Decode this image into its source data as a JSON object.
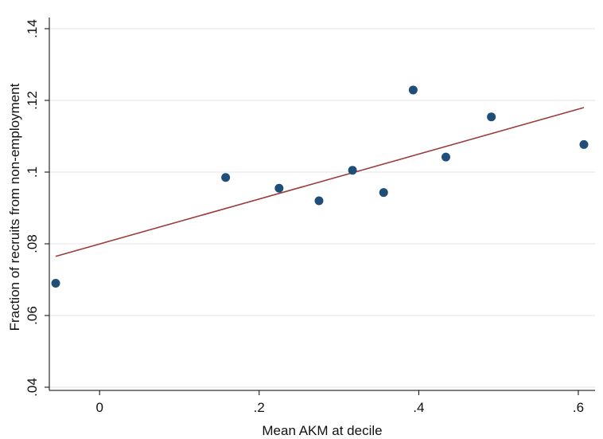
{
  "chart_data": {
    "type": "scatter",
    "title": "",
    "xlabel": "Mean AKM at decile",
    "ylabel": "Fraction of recruits from non-employment",
    "xlim": [
      -0.06,
      0.61
    ],
    "ylim": [
      0.04,
      0.14
    ],
    "x_ticks": [
      0,
      0.2,
      0.4,
      0.6
    ],
    "x_tick_labels": [
      "0",
      ".2",
      ".4",
      ".6"
    ],
    "y_ticks": [
      0.04,
      0.06,
      0.08,
      0.1,
      0.12,
      0.14
    ],
    "y_tick_labels": [
      ".04",
      ".06",
      ".08",
      ".1",
      ".12",
      ".14"
    ],
    "grid": true,
    "colors": {
      "points": "#1f4e79",
      "fit_line": "#9b3b3b"
    },
    "points": [
      {
        "x": -0.055,
        "y": 0.069
      },
      {
        "x": 0.158,
        "y": 0.0985
      },
      {
        "x": 0.225,
        "y": 0.0955
      },
      {
        "x": 0.275,
        "y": 0.092
      },
      {
        "x": 0.317,
        "y": 0.1005
      },
      {
        "x": 0.356,
        "y": 0.0943
      },
      {
        "x": 0.393,
        "y": 0.1229
      },
      {
        "x": 0.434,
        "y": 0.1042
      },
      {
        "x": 0.491,
        "y": 0.1154
      },
      {
        "x": 0.607,
        "y": 0.1077
      }
    ],
    "fit_line": {
      "x": [
        -0.055,
        0.607
      ],
      "y": [
        0.0765,
        0.118
      ]
    }
  }
}
